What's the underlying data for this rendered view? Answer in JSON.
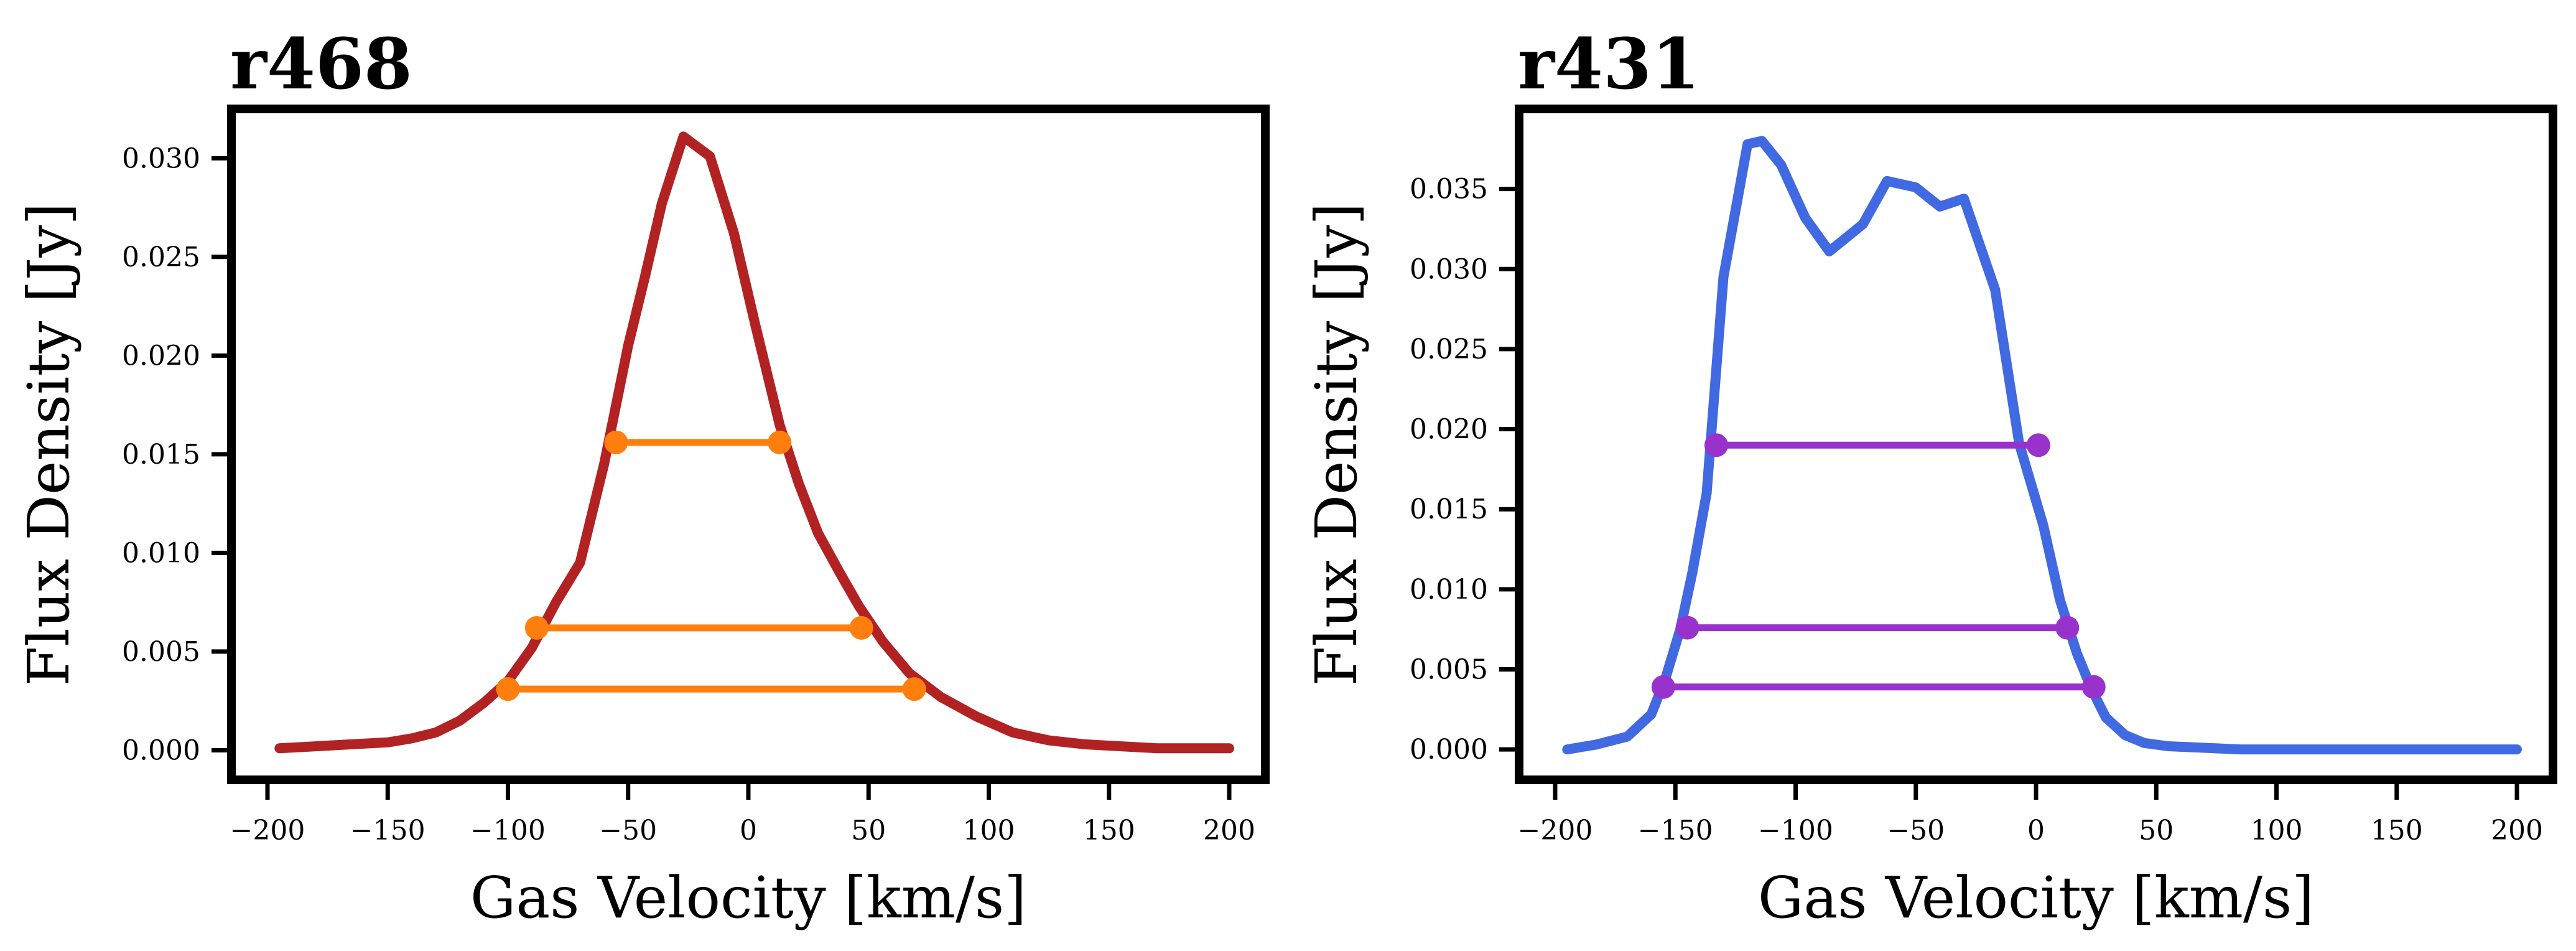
{
  "chart_data": [
    {
      "type": "line",
      "title": "r468",
      "xlabel": "Gas Velocity [km/s]",
      "ylabel": "Flux Density [Jy]",
      "xlim": [
        -215,
        215
      ],
      "ylim": [
        -0.0015,
        0.0325
      ],
      "xticks": [
        -200,
        -150,
        -100,
        -50,
        0,
        50,
        100,
        150,
        200
      ],
      "xtick_labels": [
        "−200",
        "−150",
        "−100",
        "−50",
        "0",
        "50",
        "100",
        "150",
        "200"
      ],
      "yticks": [
        0.0,
        0.005,
        0.01,
        0.015,
        0.02,
        0.025,
        0.03
      ],
      "ytick_labels": [
        "0.000",
        "0.005",
        "0.010",
        "0.015",
        "0.020",
        "0.025",
        "0.030"
      ],
      "grid": false,
      "line_color": "#b22222",
      "marker_color": "#ff7f0e",
      "series": [
        {
          "x": [
            -195,
            -180,
            -165,
            -150,
            -140,
            -130,
            -120,
            -110,
            -100,
            -90,
            -80,
            -70,
            -60,
            -50,
            -43,
            -36,
            -27,
            -16,
            -6,
            3,
            13,
            21,
            29,
            38,
            46,
            56,
            67,
            80,
            95,
            110,
            125,
            140,
            155,
            170,
            185,
            200
          ],
          "y": [
            0.0001,
            0.0002,
            0.0003,
            0.0004,
            0.0006,
            0.0009,
            0.0015,
            0.0024,
            0.0035,
            0.0052,
            0.0075,
            0.0095,
            0.0145,
            0.0205,
            0.024,
            0.0277,
            0.0311,
            0.0301,
            0.0262,
            0.0215,
            0.0165,
            0.0135,
            0.011,
            0.009,
            0.0073,
            0.0055,
            0.0039,
            0.0027,
            0.0017,
            0.0009,
            0.0005,
            0.0003,
            0.0002,
            0.0001,
            0.0001,
            0.0001
          ]
        }
      ],
      "width_lines": [
        {
          "x1": -55,
          "x2": 13,
          "y": 0.0156
        },
        {
          "x1": -88,
          "x2": 47,
          "y": 0.0062
        },
        {
          "x1": -100,
          "x2": 69,
          "y": 0.0031
        }
      ]
    },
    {
      "type": "line",
      "title": "r431",
      "xlabel": "Gas Velocity [km/s]",
      "ylabel": "Flux Density [Jy]",
      "xlim": [
        -215,
        215
      ],
      "ylim": [
        -0.0019,
        0.04
      ],
      "xticks": [
        -200,
        -150,
        -100,
        -50,
        0,
        50,
        100,
        150,
        200
      ],
      "xtick_labels": [
        "−200",
        "−150",
        "−100",
        "−50",
        "0",
        "50",
        "100",
        "150",
        "200"
      ],
      "yticks": [
        0.0,
        0.005,
        0.01,
        0.015,
        0.02,
        0.025,
        0.03,
        0.035
      ],
      "ytick_labels": [
        "0.000",
        "0.005",
        "0.010",
        "0.015",
        "0.020",
        "0.025",
        "0.030",
        "0.035"
      ],
      "grid": false,
      "line_color": "#4169e1",
      "marker_color": "#9932cc",
      "series": [
        {
          "x": [
            -195,
            -183,
            -170,
            -160,
            -154,
            -148,
            -143,
            -137,
            -130,
            -120,
            -114,
            -106,
            -96,
            -86,
            -72,
            -62,
            -50,
            -40,
            -30,
            -17,
            -7,
            3,
            10,
            17,
            23,
            29,
            37,
            45,
            55,
            70,
            85,
            100,
            120,
            140,
            160,
            180,
            200
          ],
          "y": [
            0.0,
            0.0003,
            0.0008,
            0.0022,
            0.0045,
            0.0075,
            0.011,
            0.016,
            0.0295,
            0.0378,
            0.038,
            0.0365,
            0.0332,
            0.0311,
            0.0328,
            0.0355,
            0.0351,
            0.0339,
            0.0344,
            0.0287,
            0.0191,
            0.014,
            0.0093,
            0.006,
            0.0038,
            0.002,
            0.0009,
            0.0004,
            0.0002,
            0.0001,
            0.0,
            0.0,
            0.0,
            0.0,
            0.0,
            0.0,
            0.0
          ]
        }
      ],
      "width_lines": [
        {
          "x1": -133,
          "x2": 1,
          "y": 0.019
        },
        {
          "x1": -145,
          "x2": 13,
          "y": 0.0076
        },
        {
          "x1": -155,
          "x2": 24,
          "y": 0.0039
        }
      ]
    }
  ]
}
